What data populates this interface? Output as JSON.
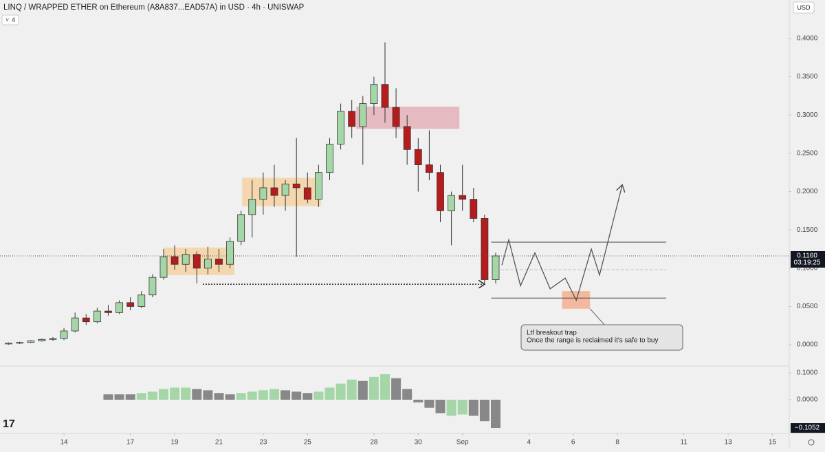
{
  "ui": {
    "currency_button": "USD",
    "indicator_badge": "4"
  },
  "chart_data": [
    {
      "type": "candlestick",
      "title": "LINQ / WRAPPED ETHER on Ethereum (A8A837...EAD57A) in USD · 4h · UNISWAP",
      "up_color": "#a5d6a7",
      "down_color": "#b71c1c",
      "grid": false,
      "xlim": [
        -2.89,
        32.76
      ],
      "xticks": [
        {
          "value": 0,
          "label": "14"
        },
        {
          "value": 3,
          "label": "17"
        },
        {
          "value": 5,
          "label": "19"
        },
        {
          "value": 7,
          "label": "21"
        },
        {
          "value": 9,
          "label": "23"
        },
        {
          "value": 11,
          "label": "25"
        },
        {
          "value": 14,
          "label": "28"
        },
        {
          "value": 16,
          "label": "30"
        },
        {
          "value": 18,
          "label": "Sep"
        },
        {
          "value": 21,
          "label": "4"
        },
        {
          "value": 23,
          "label": "6"
        },
        {
          "value": 25,
          "label": "8"
        },
        {
          "value": 28,
          "label": "11"
        },
        {
          "value": 30,
          "label": "13"
        },
        {
          "value": 32,
          "label": "15"
        }
      ],
      "ylim": [
        -0.026,
        0.4503
      ],
      "yticks": [
        {
          "value": 0,
          "label": "0.0000"
        },
        {
          "value": 0.05,
          "label": "0.0500"
        },
        {
          "value": 0.1,
          "label": "0.1000"
        },
        {
          "value": 0.15,
          "label": "0.1500"
        },
        {
          "value": 0.2,
          "label": "0.2000"
        },
        {
          "value": 0.25,
          "label": "0.2500"
        },
        {
          "value": 0.3,
          "label": "0.3000"
        },
        {
          "value": 0.35,
          "label": "0.3500"
        },
        {
          "value": 0.4,
          "label": "0.4000"
        }
      ],
      "x": [
        -2.5,
        -2,
        -1.5,
        -1,
        -0.5,
        0,
        0.5,
        1,
        1.5,
        2,
        2.5,
        3,
        3.5,
        4,
        4.5,
        5,
        5.5,
        6,
        6.5,
        7,
        7.5,
        8,
        8.5,
        9,
        9.5,
        10,
        10.5,
        11,
        11.5,
        12,
        12.5,
        13,
        13.5,
        14,
        14.5,
        15,
        15.5,
        16,
        16.5,
        17,
        17.5,
        18,
        18.5,
        19,
        19.5
      ],
      "open": [
        0.001,
        0.002,
        0.003,
        0.005,
        0.007,
        0.008,
        0.018,
        0.035,
        0.03,
        0.044,
        0.042,
        0.055,
        0.05,
        0.065,
        0.088,
        0.115,
        0.105,
        0.118,
        0.1,
        0.112,
        0.105,
        0.135,
        0.17,
        0.19,
        0.205,
        0.195,
        0.21,
        0.205,
        0.19,
        0.225,
        0.262,
        0.305,
        0.285,
        0.315,
        0.34,
        0.31,
        0.285,
        0.255,
        0.235,
        0.225,
        0.175,
        0.195,
        0.19,
        0.165,
        0.085
      ],
      "high": [
        0.003,
        0.004,
        0.006,
        0.008,
        0.01,
        0.022,
        0.042,
        0.04,
        0.048,
        0.052,
        0.058,
        0.062,
        0.07,
        0.092,
        0.125,
        0.13,
        0.125,
        0.122,
        0.128,
        0.125,
        0.14,
        0.175,
        0.215,
        0.225,
        0.235,
        0.215,
        0.27,
        0.225,
        0.235,
        0.27,
        0.315,
        0.32,
        0.325,
        0.35,
        0.395,
        0.335,
        0.3,
        0.27,
        0.28,
        0.235,
        0.2,
        0.235,
        0.205,
        0.17,
        0.12
      ],
      "low": [
        0.0,
        0.001,
        0.002,
        0.004,
        0.005,
        0.006,
        0.016,
        0.026,
        0.028,
        0.038,
        0.04,
        0.045,
        0.048,
        0.062,
        0.085,
        0.098,
        0.095,
        0.08,
        0.092,
        0.095,
        0.1,
        0.13,
        0.14,
        0.17,
        0.18,
        0.175,
        0.115,
        0.185,
        0.18,
        0.215,
        0.255,
        0.27,
        0.235,
        0.3,
        0.29,
        0.27,
        0.235,
        0.2,
        0.215,
        0.16,
        0.13,
        0.175,
        0.16,
        0.08,
        0.08
      ],
      "close": [
        0.002,
        0.003,
        0.005,
        0.007,
        0.008,
        0.018,
        0.035,
        0.03,
        0.044,
        0.042,
        0.055,
        0.05,
        0.065,
        0.088,
        0.115,
        0.105,
        0.118,
        0.1,
        0.112,
        0.105,
        0.135,
        0.17,
        0.19,
        0.205,
        0.195,
        0.21,
        0.205,
        0.19,
        0.225,
        0.262,
        0.305,
        0.285,
        0.315,
        0.34,
        0.31,
        0.285,
        0.255,
        0.235,
        0.225,
        0.175,
        0.195,
        0.19,
        0.165,
        0.085,
        0.116
      ],
      "zones": [
        {
          "x0": 4.5,
          "x1": 7.7,
          "y0": 0.091,
          "y1": 0.127,
          "color": "#f5cf9a"
        },
        {
          "x0": 8.05,
          "x1": 11.6,
          "y0": 0.181,
          "y1": 0.218,
          "color": "#f5cf9a"
        },
        {
          "x0": 13.2,
          "x1": 17.86,
          "y0": 0.282,
          "y1": 0.311,
          "color": "#e2a8b0"
        },
        {
          "x0": 22.5,
          "x1": 23.76,
          "y0": 0.047,
          "y1": 0.07,
          "color": "#f4a582"
        }
      ],
      "levels": [
        {
          "x0": 19.3,
          "x1": 27.2,
          "y": 0.134,
          "style": "solid"
        },
        {
          "x0": 19.3,
          "x1": 27.2,
          "y": 0.098,
          "style": "dashed"
        },
        {
          "x0": 19.3,
          "x1": 27.2,
          "y": 0.061,
          "style": "solid"
        },
        {
          "x0": 6.27,
          "x1": 19.0,
          "y": 0.079,
          "style": "dotted"
        }
      ],
      "projection": {
        "x": [
          19.78,
          20.09,
          20.62,
          21.27,
          21.96,
          22.64,
          23.14,
          23.82,
          24.19,
          25.22
        ],
        "y": [
          0.104,
          0.137,
          0.077,
          0.12,
          0.073,
          0.087,
          0.058,
          0.125,
          0.091,
          0.209
        ]
      },
      "annotations": [
        "Ltf breakout trap",
        "Once the range is reclaimed it's safe to buy"
      ],
      "last_price": {
        "value": 0.116,
        "label": "0.1160"
      },
      "countdown": "03:19:25"
    },
    {
      "type": "bar",
      "ylim": [
        -0.1256,
        0.1256
      ],
      "yticks": [
        {
          "value": 0.1,
          "label": "0.1000"
        },
        {
          "value": 0,
          "label": "0.0000"
        }
      ],
      "x": [
        2,
        2.5,
        3,
        3.5,
        4,
        4.5,
        5,
        5.5,
        6,
        6.5,
        7,
        7.5,
        8,
        8.5,
        9,
        9.5,
        10,
        10.5,
        11,
        11.5,
        12,
        12.5,
        13,
        13.5,
        14,
        14.5,
        15,
        15.5,
        16,
        16.5,
        17,
        17.5,
        18,
        18.5,
        19,
        19.5
      ],
      "values": [
        0.02,
        0.02,
        0.02,
        0.025,
        0.03,
        0.04,
        0.045,
        0.045,
        0.04,
        0.035,
        0.025,
        0.02,
        0.025,
        0.03,
        0.035,
        0.04,
        0.035,
        0.03,
        0.025,
        0.03,
        0.045,
        0.06,
        0.075,
        0.07,
        0.085,
        0.095,
        0.08,
        0.04,
        -0.01,
        -0.03,
        -0.05,
        -0.06,
        -0.055,
        -0.06,
        -0.08,
        -0.1052
      ],
      "colors": [
        "#888888",
        "#888888",
        "#888888",
        "#a5d6a7",
        "#a5d6a7",
        "#a5d6a7",
        "#a5d6a7",
        "#a5d6a7",
        "#888888",
        "#888888",
        "#888888",
        "#888888",
        "#a5d6a7",
        "#a5d6a7",
        "#a5d6a7",
        "#a5d6a7",
        "#888888",
        "#888888",
        "#888888",
        "#a5d6a7",
        "#a5d6a7",
        "#a5d6a7",
        "#a5d6a7",
        "#888888",
        "#a5d6a7",
        "#a5d6a7",
        "#888888",
        "#888888",
        "#888888",
        "#888888",
        "#888888",
        "#a5d6a7",
        "#a5d6a7",
        "#888888",
        "#888888",
        "#888888"
      ],
      "last_label": {
        "value": -0.1052,
        "label": "−0.1052"
      }
    }
  ]
}
